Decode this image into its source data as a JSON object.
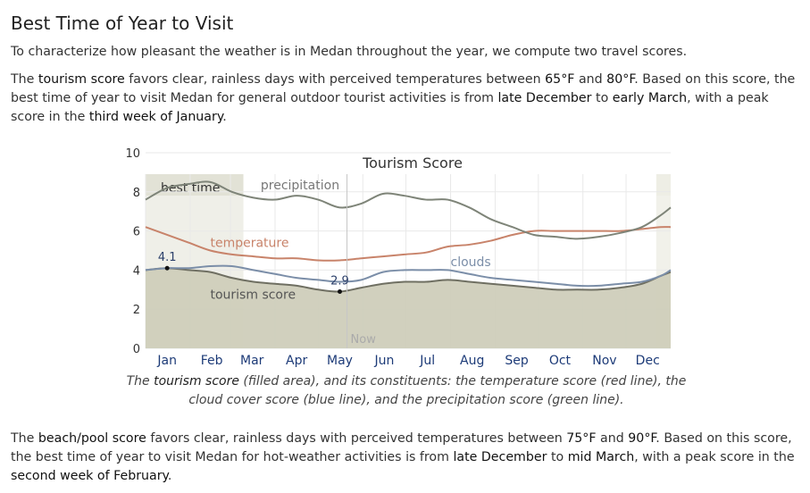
{
  "section": {
    "title": "Best Time of Year to Visit"
  },
  "intro": {
    "text": "To characterize how pleasant the weather is in Medan throughout the year, we compute two travel scores."
  },
  "tourism_paragraph": {
    "p1": "The ",
    "t1": "tourism score",
    "p2": " favors clear, rainless days with perceived temperatures between ",
    "t2": "65°F",
    "p3": " and ",
    "t3": "80°F",
    "p4": ". Based on this score, the best time of year to visit Medan for general outdoor tourist activities is from ",
    "t4": "late December",
    "p5": " to ",
    "t5": "early March",
    "p6": ", with a peak score in the ",
    "t6": "third week of January",
    "p7": "."
  },
  "caption": {
    "p1": "The ",
    "t1": "tourism score",
    "p2": " (filled area), and its constituents: the temperature score (red line), the cloud cover score (blue line), and the precipitation score (green line)."
  },
  "beach_paragraph": {
    "p1": "The ",
    "t1": "beach/pool score",
    "p2": " favors clear, rainless days with perceived temperatures between ",
    "t2": "75°F",
    "p3": " and ",
    "t3": "90°F",
    "p4": ". Based on this score, the best time of year to visit Medan for hot-weather activities is from ",
    "t4": "late December",
    "p5": " to ",
    "t5": "mid March",
    "p6": ", with a peak score in the ",
    "t6": "second week of February",
    "p7": "."
  },
  "colors": {
    "tourism_fill": "#cfceba",
    "temperature": "#c8836a",
    "clouds": "#7b8ea8",
    "precipitation": "#7e8478",
    "best_band": "#d8d8c8",
    "best_band_right": "#e8e8dc",
    "grid": "#e9e9e9",
    "now_line": "#c6c6c6"
  },
  "chart_data": {
    "type": "area",
    "title": "Tourism Score",
    "xlabel": "",
    "ylabel": "",
    "x_unit": "day_of_year",
    "xlim": [
      0,
      365
    ],
    "ylim": [
      0,
      10
    ],
    "yticks": [
      "0",
      "2",
      "4",
      "6",
      "8",
      "10"
    ],
    "ytick_values": [
      0,
      2,
      4,
      6,
      8,
      10
    ],
    "month_labels": [
      "Jan",
      "Feb",
      "Mar",
      "Apr",
      "May",
      "Jun",
      "Jul",
      "Aug",
      "Sep",
      "Oct",
      "Nov",
      "Dec"
    ],
    "month_label_days": [
      15,
      46,
      74,
      105,
      135,
      166,
      196,
      227,
      258,
      288,
      319,
      349
    ],
    "grid": true,
    "best_time": {
      "label": "best time",
      "ranges": [
        [
          0,
          68
        ],
        [
          355,
          365
        ]
      ]
    },
    "now": {
      "label": "Now",
      "day": 140
    },
    "series": [
      {
        "name": "tourism score",
        "kind": "area",
        "x": [
          0,
          15,
          30,
          45,
          60,
          75,
          90,
          105,
          120,
          135,
          150,
          165,
          180,
          195,
          210,
          225,
          240,
          255,
          270,
          285,
          300,
          315,
          330,
          345,
          358,
          365
        ],
        "y": [
          4.0,
          4.1,
          4.0,
          3.9,
          3.6,
          3.4,
          3.3,
          3.2,
          3.0,
          2.9,
          3.1,
          3.3,
          3.4,
          3.4,
          3.5,
          3.4,
          3.3,
          3.2,
          3.1,
          3.0,
          3.0,
          3.0,
          3.1,
          3.3,
          3.7,
          3.9
        ]
      },
      {
        "name": "temperature",
        "kind": "line",
        "x": [
          0,
          15,
          30,
          45,
          60,
          75,
          90,
          105,
          120,
          135,
          150,
          165,
          180,
          195,
          210,
          225,
          240,
          255,
          270,
          285,
          300,
          315,
          330,
          345,
          358,
          365
        ],
        "y": [
          6.2,
          5.8,
          5.4,
          5.0,
          4.8,
          4.7,
          4.6,
          4.6,
          4.5,
          4.5,
          4.6,
          4.7,
          4.8,
          4.9,
          5.2,
          5.3,
          5.5,
          5.8,
          6.0,
          6.0,
          6.0,
          6.0,
          6.0,
          6.1,
          6.2,
          6.2
        ]
      },
      {
        "name": "clouds",
        "kind": "line",
        "x": [
          0,
          15,
          30,
          45,
          60,
          75,
          90,
          105,
          120,
          135,
          150,
          165,
          180,
          195,
          210,
          225,
          240,
          255,
          270,
          285,
          300,
          315,
          330,
          345,
          358,
          365
        ],
        "y": [
          4.0,
          4.1,
          4.1,
          4.2,
          4.2,
          4.0,
          3.8,
          3.6,
          3.5,
          3.4,
          3.5,
          3.9,
          4.0,
          4.0,
          4.0,
          3.8,
          3.6,
          3.5,
          3.4,
          3.3,
          3.2,
          3.2,
          3.3,
          3.4,
          3.7,
          4.0
        ]
      },
      {
        "name": "precipitation",
        "kind": "line",
        "x": [
          0,
          15,
          30,
          45,
          60,
          75,
          90,
          105,
          120,
          135,
          150,
          165,
          180,
          195,
          210,
          225,
          240,
          255,
          270,
          285,
          300,
          315,
          330,
          345,
          358,
          365
        ],
        "y": [
          7.6,
          8.2,
          8.4,
          8.5,
          8.0,
          7.7,
          7.6,
          7.8,
          7.6,
          7.2,
          7.4,
          7.9,
          7.8,
          7.6,
          7.6,
          7.2,
          6.6,
          6.2,
          5.8,
          5.7,
          5.6,
          5.7,
          5.9,
          6.2,
          6.8,
          7.2
        ]
      }
    ],
    "annotations": [
      {
        "label": "4.1",
        "x": 15,
        "y": 4.1
      },
      {
        "label": "2.9",
        "x": 135,
        "y": 2.9
      }
    ],
    "series_labels": [
      {
        "text": "precipitation",
        "series": "precipitation"
      },
      {
        "text": "temperature",
        "series": "temperature"
      },
      {
        "text": "clouds",
        "series": "clouds"
      },
      {
        "text": "tourism score",
        "series": "tourism score"
      }
    ]
  }
}
